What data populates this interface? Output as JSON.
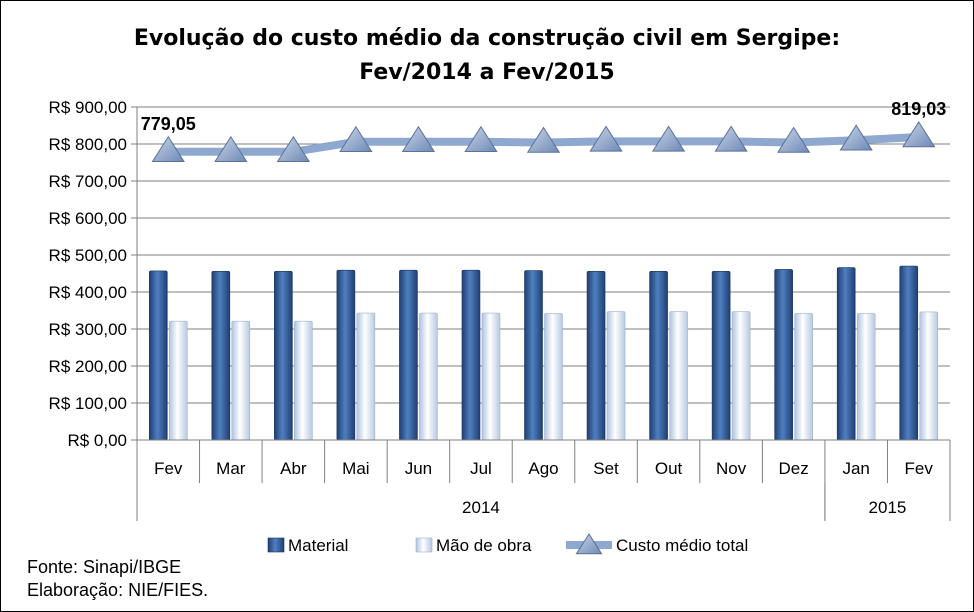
{
  "chart_data": {
    "type": "bar",
    "title": "Evolução do custo médio da construção civil em Sergipe:",
    "subtitle": "Fev/2014 a Fev/2015",
    "categories": [
      "Fev",
      "Mar",
      "Abr",
      "Mai",
      "Jun",
      "Jul",
      "Ago",
      "Set",
      "Out",
      "Nov",
      "Dez",
      "Jan",
      "Fev"
    ],
    "year_groups": [
      {
        "label": "2014",
        "start": 0,
        "end": 10
      },
      {
        "label": "2015",
        "start": 11,
        "end": 12
      }
    ],
    "series": [
      {
        "name": "Material",
        "kind": "bar",
        "color": "#2E5C9A",
        "values": [
          457,
          456,
          456,
          459,
          459,
          459,
          458,
          456,
          456,
          456,
          461,
          466,
          470
        ]
      },
      {
        "name": "Mão de obra",
        "kind": "bar",
        "color": "#C9D9EE",
        "values": [
          321,
          321,
          321,
          343,
          343,
          343,
          342,
          347,
          347,
          347,
          342,
          342,
          346
        ]
      },
      {
        "name": "Custo médio total",
        "kind": "line",
        "color": "#8FA8CF",
        "values": [
          779.05,
          779,
          779,
          806,
          806,
          806,
          804,
          807,
          807,
          807,
          804,
          810,
          819.03
        ]
      }
    ],
    "data_labels": [
      {
        "series": 2,
        "index": 0,
        "text": "779,05"
      },
      {
        "series": 2,
        "index": 12,
        "text": "819,03"
      }
    ],
    "ylim": [
      0,
      900
    ],
    "yticks": [
      0,
      100,
      200,
      300,
      400,
      500,
      600,
      700,
      800,
      900
    ],
    "ytick_labels": [
      "R$ 0,00",
      "R$ 100,00",
      "R$ 200,00",
      "R$ 300,00",
      "R$ 400,00",
      "R$ 500,00",
      "R$ 600,00",
      "R$ 700,00",
      "R$ 800,00",
      "R$ 900,00"
    ],
    "xlabel": "",
    "ylabel": "",
    "grid": true,
    "legend_position": "bottom"
  },
  "footer": {
    "source": "Fonte: Sinapi/IBGE",
    "credit": "Elaboração: NIE/FIES."
  }
}
